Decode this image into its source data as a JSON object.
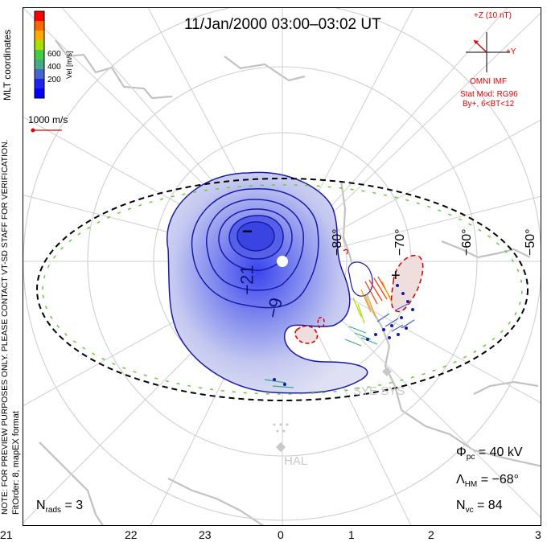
{
  "title": "11/Jan/2000 03:00–03:02 UT",
  "colorbar": {
    "label": "Vel [m/s]",
    "ticks": [
      "600",
      "400",
      "200"
    ],
    "colors": [
      "#ff0000",
      "#ff6600",
      "#ffaa00",
      "#aadd00",
      "#44cc44",
      "#44aa88",
      "#4466cc",
      "#2222ee",
      "#0000ff"
    ]
  },
  "sidebar": {
    "coordinates": "MLT coordinates",
    "note": "NOTE: FOR PREVIEW PURPOSES ONLY. PLEASE CONTACT VT-SD STAFF FOR VERIFICATION.",
    "fit": "FitOrder: 8, mapEX format"
  },
  "vector_scale": "1000 m/s",
  "imf": {
    "z_label": "+Z (10 nT)",
    "y_label": "+Y",
    "source": "OMNI IMF",
    "model": "Stat Mod: RG96",
    "condition": "By+, 6<BT<12"
  },
  "stats": {
    "phi_pc_symbol": "Φ",
    "phi_pc_sub": "pc",
    "phi_pc_value": "= 40 kV",
    "lambda_hm_symbol": "Λ",
    "lambda_hm_sub": "HM",
    "lambda_hm_value": "= −68°",
    "n_vc_symbol": "N",
    "n_vc_sub": "vc",
    "n_vc_value": "= 84",
    "n_rads_symbol": "N",
    "n_rads_sub": "rads",
    "n_rads_value": "= 3"
  },
  "contour_labels": [
    "−21",
    "−9",
    "−",
    "+"
  ],
  "latitude_labels": [
    "−80°",
    "−70°",
    "−60°",
    "−50°"
  ],
  "stations": [
    "SYE SYS",
    "HAL"
  ],
  "mlt_ticks": [
    "21",
    "22",
    "23",
    "0",
    "1",
    "2",
    "3"
  ],
  "colors": {
    "positive_cell": "#cc0000",
    "negative_cell": "#0000aa",
    "boundary_dash": "#66cc33"
  }
}
